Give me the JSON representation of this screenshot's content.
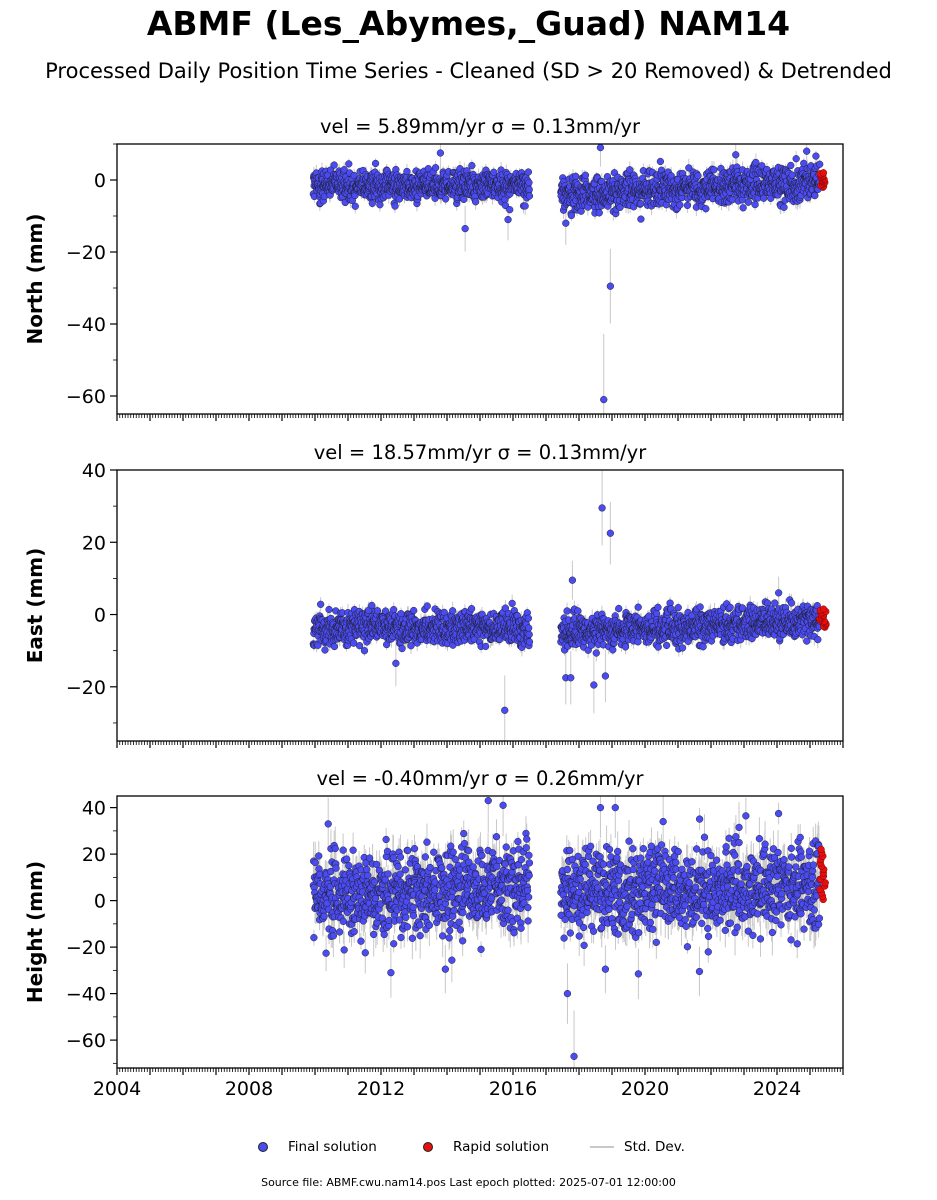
{
  "title": "ABMF (Les_Abymes,_Guad) NAM14",
  "subtitle": "Processed Daily Position Time Series - Cleaned (SD > 20 Removed) & Detrended",
  "chart_data": [
    {
      "type": "scatter",
      "panel": "north",
      "title": "vel = 5.89mm/yr   σ = 0.13mm/yr",
      "ylabel": "North (mm)",
      "xlim": [
        2004.0,
        2026.0
      ],
      "ylim": [
        -65,
        10
      ],
      "yticks": [
        0,
        -20,
        -40,
        -60
      ],
      "ytick_labels": [
        "0",
        "−20",
        "−40",
        "−60"
      ],
      "show_xtick_labels": false,
      "final_segments": [
        {
          "x_start": 2009.95,
          "x_end": 2016.5,
          "mean_start": -1.5,
          "mean_end": -1.5,
          "spread": 2.2
        },
        {
          "x_start": 2017.45,
          "x_end": 2025.3,
          "mean_start": -4.0,
          "mean_end": -0.5,
          "spread": 2.4
        }
      ],
      "final_outliers": [
        {
          "x": 2014.55,
          "y": -13.5
        },
        {
          "x": 2015.85,
          "y": -11.0
        },
        {
          "x": 2013.8,
          "y": 7.5
        },
        {
          "x": 2018.65,
          "y": 9.0
        },
        {
          "x": 2018.95,
          "y": -29.5
        },
        {
          "x": 2018.75,
          "y": -61.0
        },
        {
          "x": 2017.6,
          "y": -12.0
        },
        {
          "x": 2022.75,
          "y": 7.0
        },
        {
          "x": 2024.9,
          "y": 8.0
        }
      ],
      "rapid": {
        "x_start": 2025.3,
        "x_end": 2025.5,
        "y_min": -2.0,
        "y_max": 2.0
      }
    },
    {
      "type": "scatter",
      "panel": "east",
      "title": "vel = 18.57mm/yr   σ = 0.13mm/yr",
      "ylabel": "East (mm)",
      "xlim": [
        2004.0,
        2026.0
      ],
      "ylim": [
        -35,
        40
      ],
      "yticks": [
        40,
        20,
        0,
        -20
      ],
      "ytick_labels": [
        "40",
        "20",
        "0",
        "−20"
      ],
      "show_xtick_labels": false,
      "final_segments": [
        {
          "x_start": 2009.95,
          "x_end": 2016.5,
          "mean_start": -3.5,
          "mean_end": -3.5,
          "spread": 2.3
        },
        {
          "x_start": 2017.45,
          "x_end": 2025.3,
          "mean_start": -5.0,
          "mean_end": -1.5,
          "spread": 2.3
        }
      ],
      "final_outliers": [
        {
          "x": 2018.7,
          "y": 29.5
        },
        {
          "x": 2018.95,
          "y": 22.5
        },
        {
          "x": 2017.8,
          "y": 9.5
        },
        {
          "x": 2015.75,
          "y": -26.5
        },
        {
          "x": 2017.6,
          "y": -17.5
        },
        {
          "x": 2017.75,
          "y": -17.5
        },
        {
          "x": 2018.45,
          "y": -19.5
        },
        {
          "x": 2018.8,
          "y": -17.0
        },
        {
          "x": 2012.45,
          "y": -13.5
        },
        {
          "x": 2024.05,
          "y": 6.0
        }
      ],
      "rapid": {
        "x_start": 2025.3,
        "x_end": 2025.5,
        "y_min": -3.5,
        "y_max": 1.5
      }
    },
    {
      "type": "scatter",
      "panel": "height",
      "title": "vel = -0.40mm/yr   σ = 0.26mm/yr",
      "ylabel": "Height (mm)",
      "xlim": [
        2004.0,
        2026.0
      ],
      "ylim": [
        -72,
        45
      ],
      "yticks": [
        40,
        20,
        0,
        -20,
        -40,
        -60
      ],
      "ytick_labels": [
        "40",
        "20",
        "0",
        "−20",
        "−40",
        "−60"
      ],
      "show_xtick_labels": true,
      "xticks": [
        2004,
        2008,
        2012,
        2016,
        2020,
        2024
      ],
      "xtick_labels": [
        "2004",
        "2008",
        "2012",
        "2016",
        "2020",
        "2024"
      ],
      "final_segments": [
        {
          "x_start": 2009.95,
          "x_end": 2016.5,
          "mean_start": 2.0,
          "mean_end": 6.0,
          "spread": 9.0
        },
        {
          "x_start": 2017.45,
          "x_end": 2025.3,
          "mean_start": 4.0,
          "mean_end": 6.0,
          "spread": 9.0
        }
      ],
      "final_outliers": [
        {
          "x": 2015.25,
          "y": 43.0
        },
        {
          "x": 2015.7,
          "y": 41.0
        },
        {
          "x": 2018.65,
          "y": 40.0
        },
        {
          "x": 2019.1,
          "y": 40.0
        },
        {
          "x": 2017.85,
          "y": -67.0
        },
        {
          "x": 2017.65,
          "y": -40.0
        },
        {
          "x": 2012.3,
          "y": -31.0
        },
        {
          "x": 2019.8,
          "y": -31.5
        },
        {
          "x": 2021.65,
          "y": -30.5
        },
        {
          "x": 2022.85,
          "y": 31.5
        },
        {
          "x": 2020.55,
          "y": 34.0
        },
        {
          "x": 2010.4,
          "y": 33.0
        },
        {
          "x": 2013.95,
          "y": -29.5
        },
        {
          "x": 2018.8,
          "y": -29.5
        }
      ],
      "rapid": {
        "x_start": 2025.3,
        "x_end": 2025.5,
        "y_min": 0.5,
        "y_max": 22.0
      }
    }
  ],
  "legend": {
    "final_label": "Final solution",
    "rapid_label": "Rapid solution",
    "std_label": "Std. Dev."
  },
  "colors": {
    "final": "#4b4bf2",
    "rapid": "#e31010",
    "std_dev": "#c8c8c8",
    "edge": "#1a1a1a"
  },
  "footer": "Source file: ABMF.cwu.nam14.pos  Last epoch plotted: 2025-07-01 12:00:00"
}
